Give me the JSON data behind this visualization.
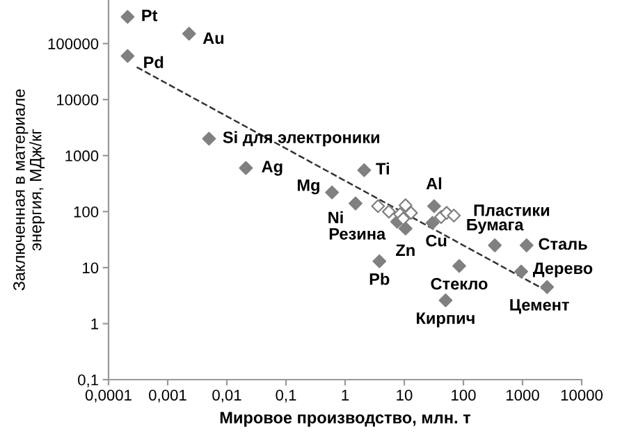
{
  "chart_data": {
    "type": "scatter",
    "xlabel": "Мировое производство, млн. т",
    "ylabel": "Заключенная в материале\nэнергия, МДж/кг",
    "log": "xy",
    "marker": "diamond",
    "grid": false,
    "xlim": [
      0.0001,
      10000
    ],
    "ylim": [
      0.1,
      600000
    ],
    "xticks": [
      {
        "value": 0.0001,
        "label": "0,0001"
      },
      {
        "value": 0.001,
        "label": "0,001"
      },
      {
        "value": 0.01,
        "label": "0,01"
      },
      {
        "value": 0.1,
        "label": "0,1"
      },
      1,
      10,
      100,
      1000,
      10000
    ],
    "yticks": [
      {
        "value": 0.1,
        "label": "0,1"
      },
      1,
      10,
      100,
      1000,
      10000,
      100000
    ],
    "series": [
      {
        "color": "#808080",
        "x": [
          0.00021,
          0.0023,
          0.00021,
          0.005,
          0.021,
          0.6,
          1.5,
          2.1,
          7.6,
          10.5,
          32,
          30,
          3.8,
          340,
          1170,
          85,
          950,
          2600,
          50
        ],
        "values": [
          300000,
          150000,
          60000,
          2000,
          600,
          220,
          140,
          550,
          66,
          50,
          125,
          63,
          13,
          25,
          25,
          10.7,
          8.5,
          4.5,
          2.6
        ]
      },
      {
        "color": "#ffffff",
        "x": [
          3.6,
          5.5,
          8.5,
          10.5,
          13,
          9.6,
          42,
          52,
          69
        ],
        "values": [
          125,
          100,
          90,
          130,
          95,
          75,
          80,
          95,
          85
        ]
      },
      {
        "type": "line",
        "line_style": "dashed",
        "marker": "none",
        "color": "#333333",
        "x": [
          0.0003,
          2300
        ],
        "values": [
          38000,
          4.1
        ]
      }
    ],
    "annotations": [
      {
        "text": "Pt",
        "x": 0.00021,
        "y": 300000
      },
      {
        "text": "Au",
        "x": 0.0023,
        "y": 150000
      },
      {
        "text": "Pd",
        "x": 0.00021,
        "y": 60000
      },
      {
        "text": "Si для электроники",
        "x": 0.005,
        "y": 2000
      },
      {
        "text": "Ag",
        "x": 0.021,
        "y": 600
      },
      {
        "text": "Mg",
        "x": 0.6,
        "y": 220
      },
      {
        "text": "Ni",
        "x": 1.5,
        "y": 140
      },
      {
        "text": "Ti",
        "x": 2.1,
        "y": 550
      },
      {
        "text": "Резина",
        "x": 7.6,
        "y": 66
      },
      {
        "text": "Zn",
        "x": 10.5,
        "y": 50
      },
      {
        "text": "Al",
        "x": 32,
        "y": 125
      },
      {
        "text": "Cu",
        "x": 30,
        "y": 63
      },
      {
        "text": "Pb",
        "x": 3.8,
        "y": 13
      },
      {
        "text": "Бумага",
        "x": 340,
        "y": 25
      },
      {
        "text": "Сталь",
        "x": 1170,
        "y": 25
      },
      {
        "text": "Стекло",
        "x": 85,
        "y": 10.7
      },
      {
        "text": "Дерево",
        "x": 950,
        "y": 8.5
      },
      {
        "text": "Цемент",
        "x": 2600,
        "y": 4.5
      },
      {
        "text": "Кирпич",
        "x": 50,
        "y": 2.6
      },
      {
        "text": "Пластики",
        "x": 69,
        "y": 85
      }
    ]
  }
}
